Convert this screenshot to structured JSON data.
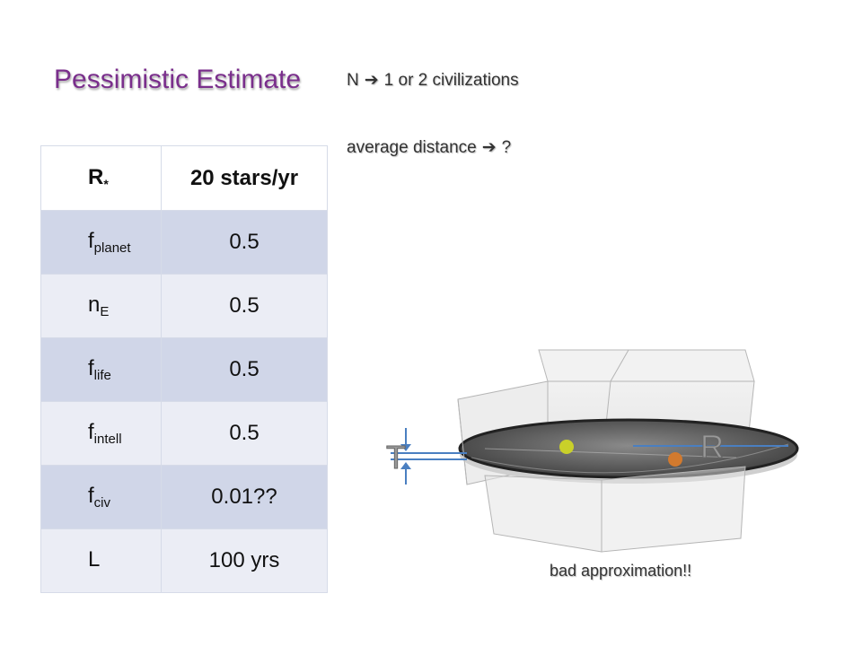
{
  "slide": {
    "title": "Pessimistic Estimate",
    "notes": {
      "n_label": "N",
      "n_arrow": "➔",
      "n_value": "1 or 2 civilizations",
      "distance_label": "average distance",
      "distance_arrow": "➔",
      "distance_value": "?"
    },
    "table": {
      "rows": [
        {
          "var_main": "R",
          "var_sub": "*",
          "value": "20 stars/yr"
        },
        {
          "var_main": "f",
          "var_sub": "planet",
          "value": "0.5"
        },
        {
          "var_main": "n",
          "var_sub": "E",
          "value": "0.5"
        },
        {
          "var_main": "f",
          "var_sub": "life",
          "value": "0.5"
        },
        {
          "var_main": "f",
          "var_sub": "intell",
          "value": "0.5"
        },
        {
          "var_main": "f",
          "var_sub": "civ",
          "value": "0.01??"
        },
        {
          "var_main": "L",
          "var_sub": "",
          "value": "100 yrs"
        }
      ]
    },
    "diagram": {
      "label_t": "T",
      "label_r": "R",
      "caption": "bad approximation!!",
      "colors": {
        "disk": "#555555",
        "arrow": "#4a7fc1",
        "yellow_dot": "#c9d02a",
        "orange_dot": "#d27a2e"
      }
    }
  }
}
